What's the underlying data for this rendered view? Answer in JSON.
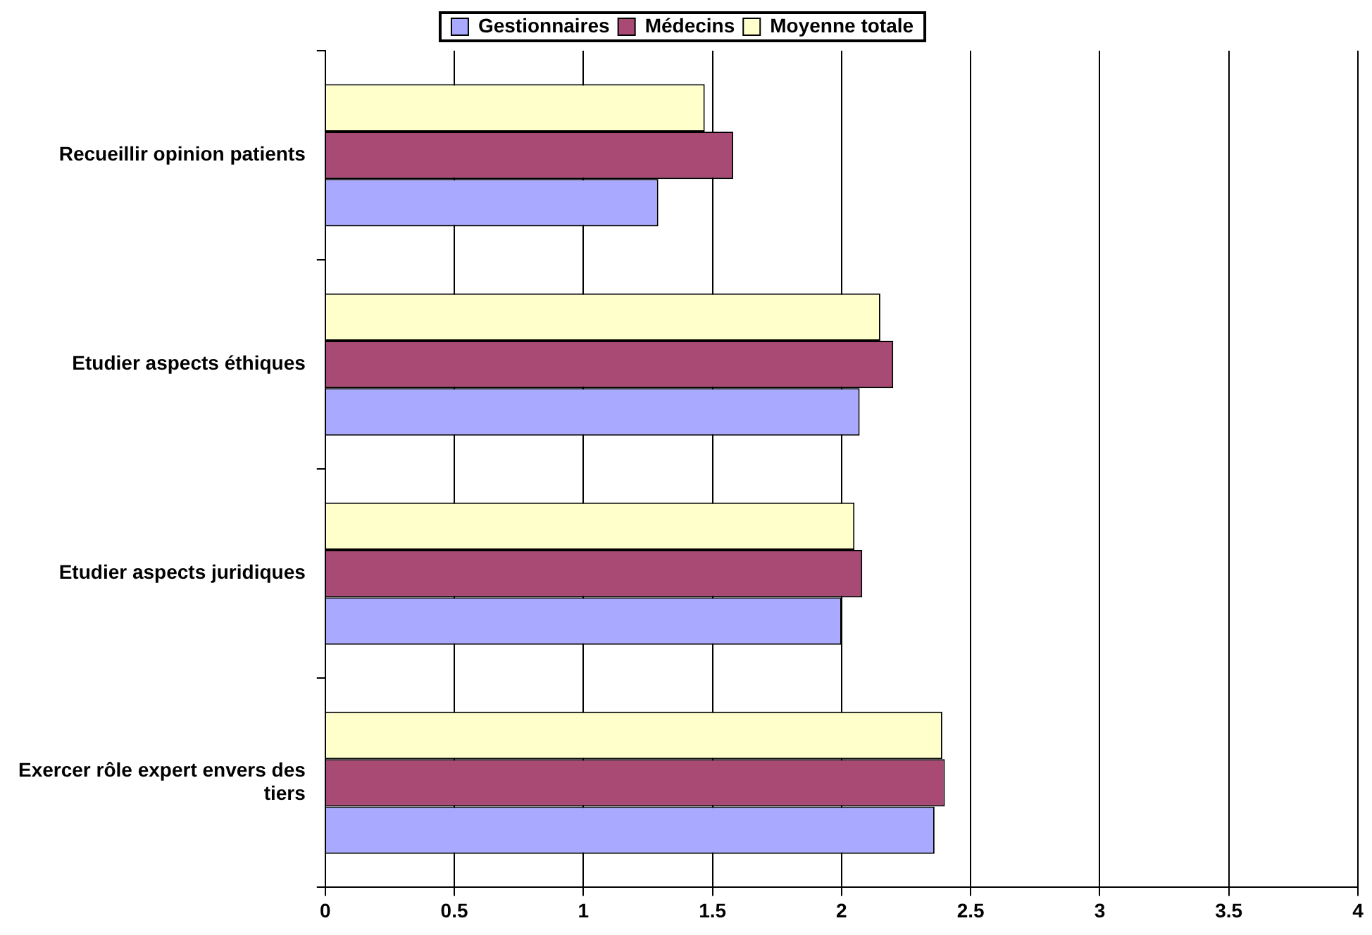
{
  "chart_data": {
    "type": "bar",
    "orientation": "horizontal",
    "categories": [
      "Recueillir opinion patients",
      "Etudier aspects éthiques",
      "Etudier aspects juridiques",
      "Exercer rôle expert envers des tiers"
    ],
    "series": [
      {
        "name": "Gestionnaires",
        "color": "#a9a9ff",
        "values": [
          1.29,
          2.07,
          2.0,
          2.36
        ]
      },
      {
        "name": "Médecins",
        "color": "#a94a74",
        "values": [
          1.58,
          2.2,
          2.08,
          2.4
        ]
      },
      {
        "name": "Moyenne totale",
        "color": "#ffffcc",
        "values": [
          1.47,
          2.15,
          2.05,
          2.39
        ]
      }
    ],
    "xlim": [
      0,
      4
    ],
    "xticks": [
      0,
      0.5,
      1,
      1.5,
      2,
      2.5,
      3,
      3.5,
      4
    ],
    "grid": "x",
    "legend": "top"
  }
}
